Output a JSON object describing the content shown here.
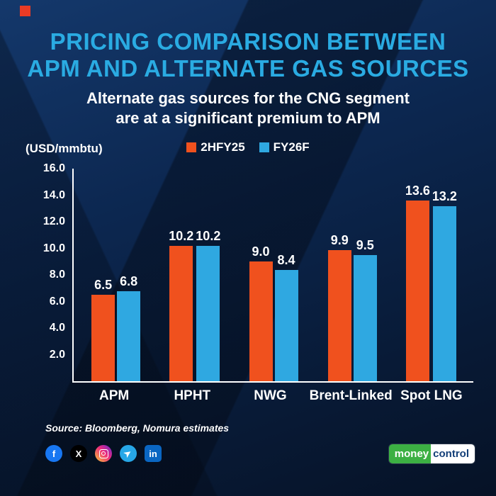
{
  "header": {
    "title_line1": "PRICING COMPARISON BETWEEN",
    "title_line2": "APM AND ALTERNATE GAS SOURCES",
    "subtitle_line1": "Alternate gas sources for the CNG segment",
    "subtitle_line2": "are at a significant premium to APM"
  },
  "chart_data": {
    "type": "bar",
    "title": "Pricing comparison between APM and alternate gas sources",
    "unit_label": "(USD/mmbtu)",
    "categories": [
      "APM",
      "HPHT",
      "NWG",
      "Brent-Linked",
      "Spot LNG"
    ],
    "series": [
      {
        "name": "2HFY25",
        "color": "#f0511e",
        "values": [
          6.5,
          10.2,
          9.0,
          9.9,
          13.6
        ]
      },
      {
        "name": "FY26F",
        "color": "#2fa8e1",
        "values": [
          6.8,
          10.2,
          8.4,
          9.5,
          13.2
        ]
      }
    ],
    "ylim": [
      0,
      16
    ],
    "yticks": [
      16.0,
      14.0,
      12.0,
      10.0,
      8.0,
      6.0,
      4.0,
      2.0
    ],
    "grid": false,
    "legend_position": "top"
  },
  "footer": {
    "source": "Source: Bloomberg, Nomura estimates",
    "social_icons": [
      "facebook",
      "x",
      "instagram",
      "telegram",
      "linkedin"
    ],
    "logo": {
      "left": "money",
      "right": "control"
    }
  },
  "colors": {
    "background": "#0c2750",
    "title": "#2aabe2",
    "accent_square": "#e93b25",
    "bar_2hfy25": "#f0511e",
    "bar_fy26f": "#2fa8e1"
  }
}
